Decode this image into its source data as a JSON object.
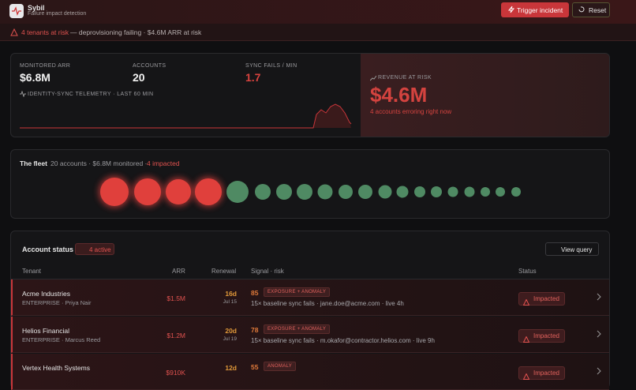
{
  "header": {
    "title": "Sybil",
    "subtitle": "Failure impact detection",
    "buttons": [
      "Trigger incident",
      "Reset"
    ]
  },
  "alert": {
    "headline": "4 tenants at risk",
    "detail": "— deprovisioning failing · $4.6M ARR at risk"
  },
  "stats": {
    "items": [
      {
        "label": "MONITORED ARR",
        "value": "$6.8M"
      },
      {
        "label": "ACCOUNTS",
        "value": "20"
      },
      {
        "label": "SYNC FAILS / MIN",
        "value": "1.7"
      }
    ],
    "telemetry": "IDENTITY-SYNC TELEMETRY · LAST 60 MIN",
    "risk": {
      "label": "REVENUE AT RISK",
      "value": "$4.6M",
      "note": "4 accounts erroring right now"
    }
  },
  "fleet": {
    "title": "The fleet",
    "summary": "20 accounts · $6.8M monitored ·",
    "impacted": "4 impacted"
  },
  "table": {
    "title": "Account status",
    "badge": "4 active",
    "action": "View query",
    "columns": [
      "Tenant",
      "ARR",
      "Renewal",
      "Signal · risk",
      "Status"
    ],
    "rows": [
      {
        "tenant": "Acme Industries",
        "meta": "ENTERPRISE · Priya Nair",
        "arr": "$1.5M",
        "renewal": "16d",
        "date": "Jul 15",
        "risk": "85",
        "tag": "EXPOSURE + ANOMALY",
        "signal": "15× baseline sync fails · jane.doe@acme.com · live 4h",
        "status": "Impacted"
      },
      {
        "tenant": "Helios Financial",
        "meta": "ENTERPRISE · Marcus Reed",
        "arr": "$1.2M",
        "renewal": "20d",
        "date": "Jul 19",
        "risk": "78",
        "tag": "EXPOSURE + ANOMALY",
        "signal": "15× baseline sync fails · m.okafor@contractor.helios.com · live 9h",
        "status": "Impacted"
      },
      {
        "tenant": "Vertex Health Systems",
        "arr": "$910K",
        "renewal": "12d",
        "risk": "55",
        "tag": "ANOMALY",
        "status": "Impacted"
      }
    ]
  }
}
